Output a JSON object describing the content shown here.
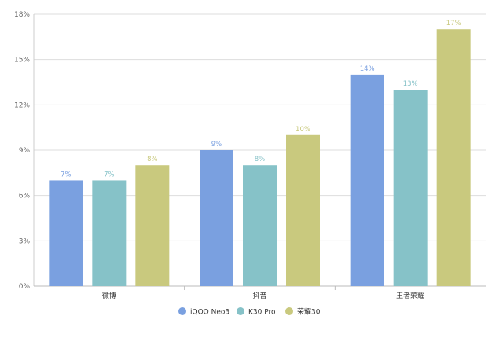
{
  "chart_data": {
    "type": "bar",
    "categories": [
      "微博",
      "抖音",
      "王者荣耀"
    ],
    "series": [
      {
        "name": "iQOO Neo3",
        "values": [
          7,
          9,
          14
        ],
        "color": "#7aa0e0"
      },
      {
        "name": "K30 Pro",
        "values": [
          7,
          8,
          13
        ],
        "color": "#86c2c8"
      },
      {
        "name": "荣耀30",
        "values": [
          8,
          10,
          17
        ],
        "color": "#c9c97e"
      }
    ],
    "data_labels": [
      [
        "7%",
        "9%",
        "14%"
      ],
      [
        "7%",
        "8%",
        "13%"
      ],
      [
        "8%",
        "10%",
        "17%"
      ]
    ],
    "yticks": [
      0,
      3,
      6,
      9,
      12,
      15,
      18
    ],
    "ytick_labels": [
      "0%",
      "3%",
      "6%",
      "9%",
      "12%",
      "15%",
      "18%"
    ],
    "ylim": [
      0,
      18
    ],
    "grid": true,
    "legend_position": "bottom",
    "title": "",
    "xlabel": "",
    "ylabel": ""
  }
}
